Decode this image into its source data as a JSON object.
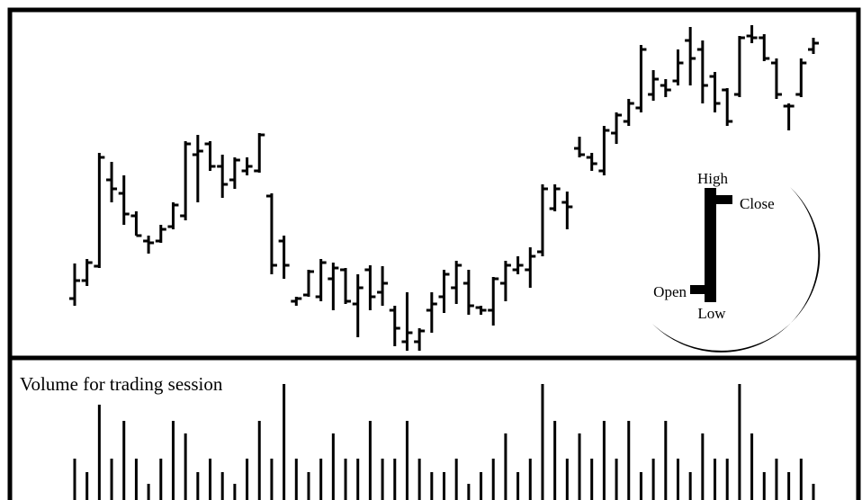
{
  "chart_data": {
    "type": "ohlc",
    "ylim": [
      0,
      400
    ],
    "y2lim": [
      0,
      160
    ],
    "color": "#000000",
    "annotation": "Volume for trading session",
    "legend": {
      "high": "High",
      "low": "Low",
      "open": "Open",
      "close": "Close"
    },
    "high": [
      107,
      112,
      230,
      220,
      205,
      165,
      138,
      150,
      175,
      243,
      250,
      243,
      228,
      225,
      225,
      252,
      185,
      138,
      70,
      100,
      112,
      108,
      102,
      95,
      105,
      104,
      60,
      75,
      35,
      75,
      100,
      110,
      100,
      60,
      92,
      110,
      115,
      125,
      195,
      195,
      187,
      248,
      230,
      260,
      275,
      290,
      350,
      322,
      312,
      345,
      370,
      355,
      320,
      302,
      360,
      372,
      362,
      335,
      285,
      335,
      358
    ],
    "low": [
      60,
      82,
      102,
      175,
      150,
      138,
      118,
      130,
      145,
      155,
      175,
      210,
      180,
      190,
      205,
      208,
      95,
      90,
      60,
      70,
      65,
      55,
      62,
      25,
      55,
      60,
      15,
      10,
      10,
      30,
      52,
      62,
      50,
      50,
      38,
      65,
      95,
      80,
      115,
      165,
      145,
      225,
      210,
      205,
      240,
      260,
      275,
      288,
      292,
      305,
      305,
      285,
      275,
      260,
      292,
      352,
      332,
      290,
      255,
      292,
      340
    ],
    "open": [
      68,
      88,
      104,
      200,
      185,
      160,
      132,
      132,
      148,
      160,
      228,
      240,
      215,
      200,
      210,
      210,
      182,
      132,
      65,
      72,
      70,
      90,
      100,
      62,
      100,
      75,
      55,
      20,
      20,
      55,
      70,
      80,
      85,
      58,
      55,
      85,
      100,
      100,
      120,
      168,
      175,
      235,
      225,
      210,
      252,
      265,
      280,
      295,
      305,
      310,
      355,
      345,
      315,
      300,
      295,
      360,
      358,
      330,
      282,
      295,
      345
    ],
    "close": [
      88,
      108,
      225,
      190,
      162,
      138,
      130,
      145,
      172,
      240,
      232,
      215,
      195,
      222,
      215,
      250,
      105,
      105,
      68,
      98,
      108,
      102,
      65,
      80,
      70,
      85,
      35,
      30,
      32,
      62,
      95,
      105,
      60,
      55,
      90,
      105,
      105,
      115,
      190,
      190,
      170,
      228,
      218,
      255,
      272,
      285,
      345,
      312,
      300,
      330,
      335,
      305,
      285,
      265,
      358,
      358,
      335,
      295,
      282,
      330,
      352
    ],
    "volume": [
      46,
      31,
      106,
      46,
      88,
      46,
      18,
      46,
      88,
      74,
      31,
      46,
      31,
      18,
      46,
      88,
      46,
      129,
      46,
      31,
      46,
      74,
      46,
      46,
      88,
      46,
      46,
      88,
      46,
      31,
      31,
      46,
      18,
      31,
      46,
      74,
      31,
      46,
      129,
      88,
      46,
      74,
      46,
      88,
      46,
      88,
      31,
      46,
      88,
      46,
      31,
      74,
      46,
      46,
      129,
      74,
      31,
      46,
      31,
      46,
      18
    ]
  }
}
